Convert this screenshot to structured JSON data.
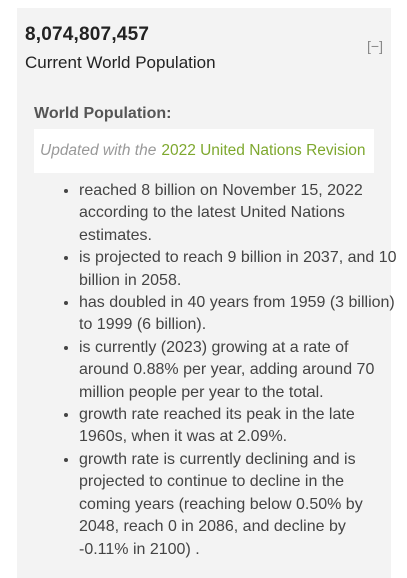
{
  "population": {
    "count": "8,074,807,457",
    "label": "Current World Population",
    "collapse_label": "[−]"
  },
  "section": {
    "title": "World Population:",
    "updated_prefix": "Updated with the",
    "updated_link": "2022 United Nations Revision"
  },
  "facts": [
    "reached 8 billion on November 15, 2022 according to the latest United Nations estimates.",
    "is projected to reach 9 billion in 2037, and 10 billion in 2058.",
    "has doubled in 40 years from 1959 (3 billion) to 1999 (6 billion).",
    "is currently (2023) growing at a rate of around 0.88% per year, adding around 70 million people per year to the total.",
    "growth rate reached its peak in the late 1960s, when it was at 2.09%.",
    "growth rate is currently declining and is projected to continue to decline in the coming years (reaching below 0.50% by 2048, reach 0 in 2086, and decline by -0.11% in 2100) ."
  ],
  "colors": {
    "link": "#7ea82e",
    "panel": "#f3f3f3"
  }
}
